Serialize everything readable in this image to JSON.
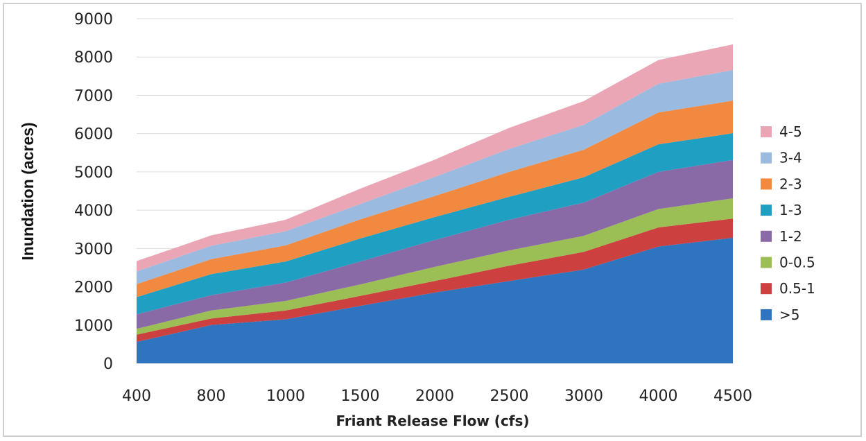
{
  "chart_data": {
    "type": "area",
    "stacked": true,
    "title": "",
    "xlabel": "Friant Release Flow (cfs)",
    "ylabel": "Inundation (acres)",
    "categories": [
      "400",
      "800",
      "1000",
      "1500",
      "2000",
      "2500",
      "3000",
      "4000",
      "4500"
    ],
    "ylim": [
      0,
      9000
    ],
    "yticks": [
      0,
      1000,
      2000,
      3000,
      4000,
      5000,
      6000,
      7000,
      8000,
      9000
    ],
    "grid": true,
    "legend_position": "right",
    "series": [
      {
        "name": ">5",
        "color": "#2f74be",
        "values": [
          560,
          1000,
          1150,
          1500,
          1850,
          2150,
          2450,
          3050,
          3280
        ]
      },
      {
        "name": "0.5-1",
        "color": "#cc4040",
        "values": [
          190,
          170,
          230,
          260,
          300,
          400,
          460,
          500,
          500
        ]
      },
      {
        "name": "0-0.5",
        "color": "#9bbf55",
        "values": [
          150,
          210,
          250,
          300,
          370,
          400,
          420,
          480,
          530
        ]
      },
      {
        "name": "1-2",
        "color": "#8a6aa6",
        "values": [
          380,
          400,
          480,
          600,
          700,
          800,
          870,
          970,
          1000
        ]
      },
      {
        "name": "1-3",
        "color": "#1f9fc2",
        "values": [
          450,
          550,
          550,
          600,
          600,
          600,
          660,
          720,
          700
        ]
      },
      {
        "name": "2-3",
        "color": "#f28940",
        "values": [
          340,
          390,
          420,
          500,
          550,
          650,
          720,
          830,
          850
        ]
      },
      {
        "name": "3-4",
        "color": "#9abadf",
        "values": [
          330,
          350,
          370,
          400,
          500,
          600,
          650,
          750,
          800
        ]
      },
      {
        "name": "4-5",
        "color": "#eba6b6",
        "values": [
          270,
          270,
          300,
          400,
          450,
          550,
          620,
          620,
          670
        ]
      }
    ]
  }
}
